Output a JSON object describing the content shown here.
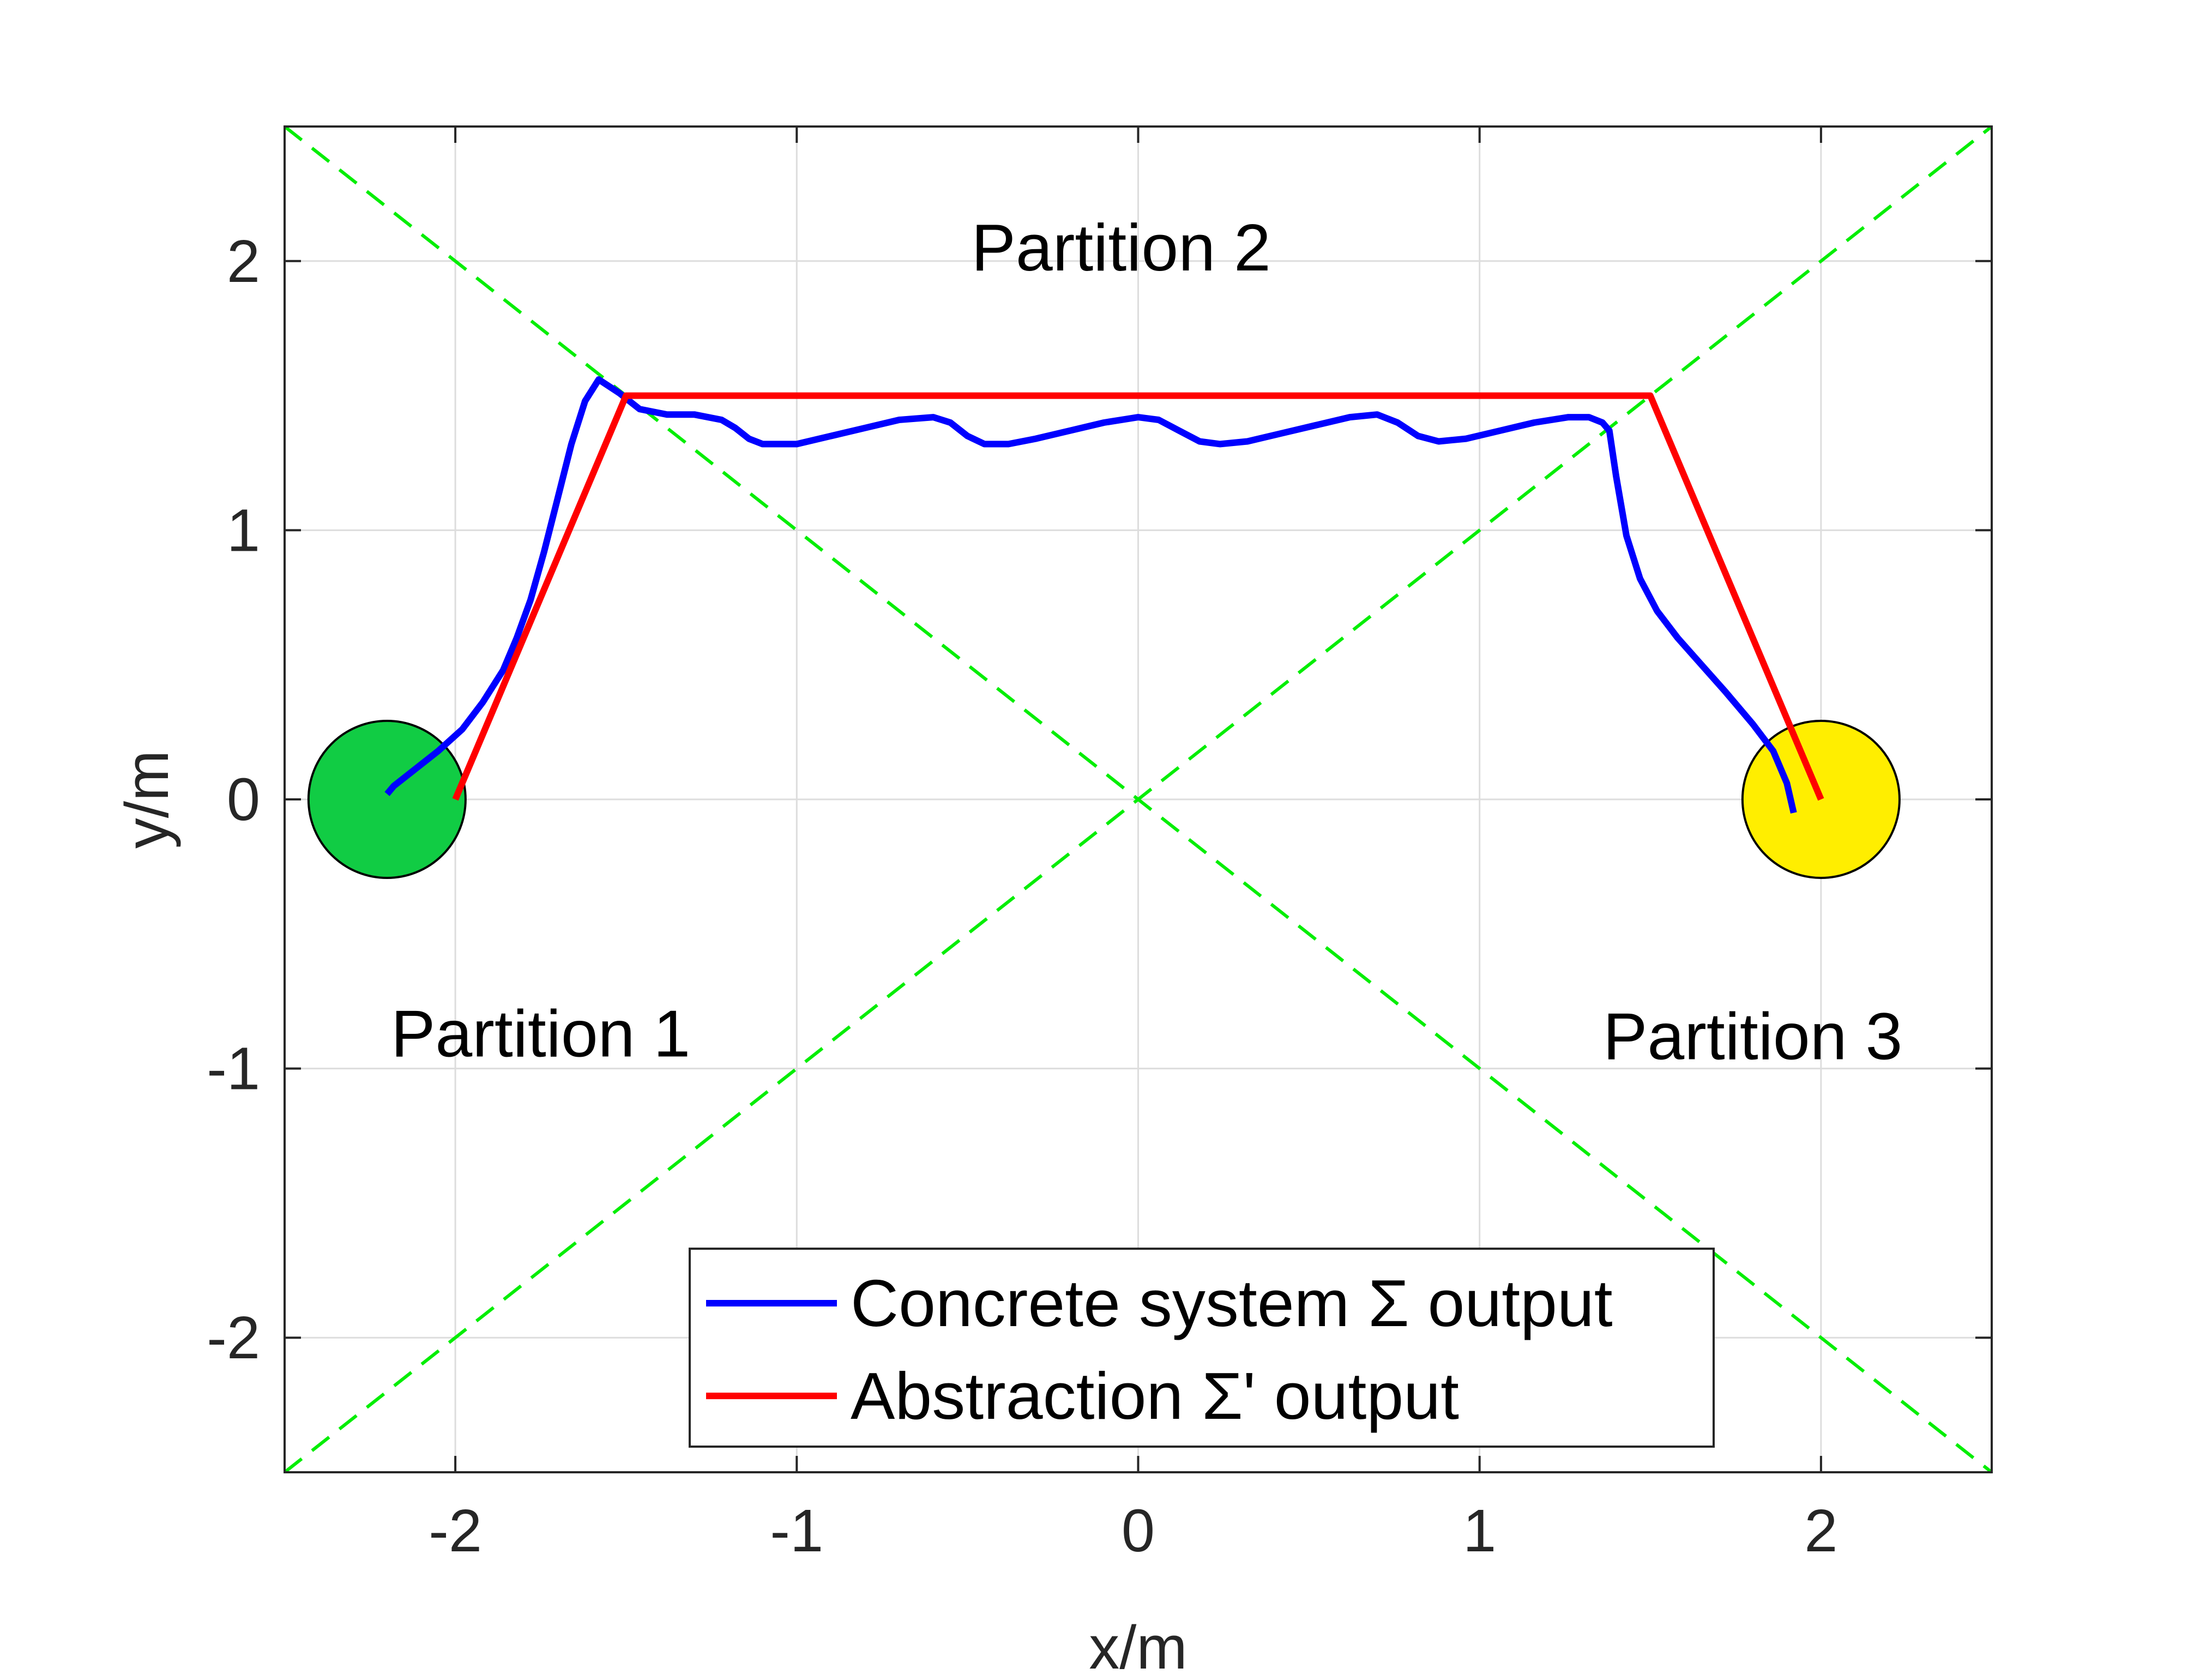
{
  "chart_data": {
    "type": "line",
    "xlabel": "x/m",
    "ylabel": "y/m",
    "xlim": [
      -2.5,
      2.5
    ],
    "ylim": [
      -2.5,
      2.5
    ],
    "xticks": [
      -2,
      -1,
      0,
      1,
      2
    ],
    "yticks": [
      -2,
      -1,
      0,
      1,
      2
    ],
    "xtick_labels": [
      "-2",
      "-1",
      "0",
      "1",
      "2"
    ],
    "ytick_labels": [
      "-2",
      "-1",
      "0",
      "1",
      "2"
    ],
    "grid": true,
    "legend_position": "bottom-right",
    "series": [
      {
        "name": "Concrete system Σ output",
        "color": "#0000ff",
        "x": [
          -2.2,
          -2.18,
          -2.12,
          -2.05,
          -1.98,
          -1.92,
          -1.86,
          -1.82,
          -1.78,
          -1.74,
          -1.7,
          -1.66,
          -1.62,
          -1.58,
          -1.52,
          -1.46,
          -1.38,
          -1.3,
          -1.22,
          -1.18,
          -1.14,
          -1.1,
          -1.0,
          -0.9,
          -0.8,
          -0.7,
          -0.6,
          -0.55,
          -0.5,
          -0.45,
          -0.38,
          -0.3,
          -0.2,
          -0.1,
          0.0,
          0.06,
          0.12,
          0.18,
          0.24,
          0.32,
          0.42,
          0.52,
          0.62,
          0.7,
          0.76,
          0.82,
          0.88,
          0.96,
          1.06,
          1.16,
          1.26,
          1.32,
          1.36,
          1.38,
          1.4,
          1.43,
          1.47,
          1.52,
          1.58,
          1.65,
          1.72,
          1.8,
          1.86,
          1.9,
          1.92
        ],
        "y": [
          0.02,
          0.05,
          0.11,
          0.18,
          0.26,
          0.36,
          0.48,
          0.6,
          0.74,
          0.92,
          1.12,
          1.32,
          1.48,
          1.56,
          1.51,
          1.45,
          1.43,
          1.43,
          1.41,
          1.38,
          1.34,
          1.32,
          1.32,
          1.35,
          1.38,
          1.41,
          1.42,
          1.4,
          1.35,
          1.32,
          1.32,
          1.34,
          1.37,
          1.4,
          1.42,
          1.41,
          1.37,
          1.33,
          1.32,
          1.33,
          1.36,
          1.39,
          1.42,
          1.43,
          1.4,
          1.35,
          1.33,
          1.34,
          1.37,
          1.4,
          1.42,
          1.42,
          1.4,
          1.37,
          1.2,
          0.98,
          0.82,
          0.7,
          0.6,
          0.5,
          0.4,
          0.28,
          0.18,
          0.06,
          -0.05
        ]
      },
      {
        "name": "Abstraction Σ' output",
        "color": "#ff0000",
        "x": [
          -2.0,
          -1.5,
          1.5,
          2.0
        ],
        "y": [
          0.0,
          1.5,
          1.5,
          0.0
        ]
      }
    ],
    "partition_lines": [
      {
        "x": [
          -2.5,
          2.5
        ],
        "y": [
          2.5,
          -2.5
        ],
        "color": "#00ee00",
        "style": "dashed"
      },
      {
        "x": [
          -2.5,
          2.5
        ],
        "y": [
          -2.5,
          2.5
        ],
        "color": "#00ee00",
        "style": "dashed"
      }
    ],
    "regions": [
      {
        "name": "start",
        "center": [
          -2.2,
          0.0
        ],
        "radius": 0.23,
        "color": "#11cc44"
      },
      {
        "name": "goal",
        "center": [
          2.0,
          0.0
        ],
        "radius": 0.23,
        "color": "#ffee00"
      }
    ],
    "annotations": [
      {
        "text": "Partition 2",
        "x": -0.05,
        "y": 2.05
      },
      {
        "text": "Partition 1",
        "x": -1.75,
        "y": -0.87
      },
      {
        "text": "Partition 3",
        "x": 1.8,
        "y": -0.88
      }
    ]
  }
}
